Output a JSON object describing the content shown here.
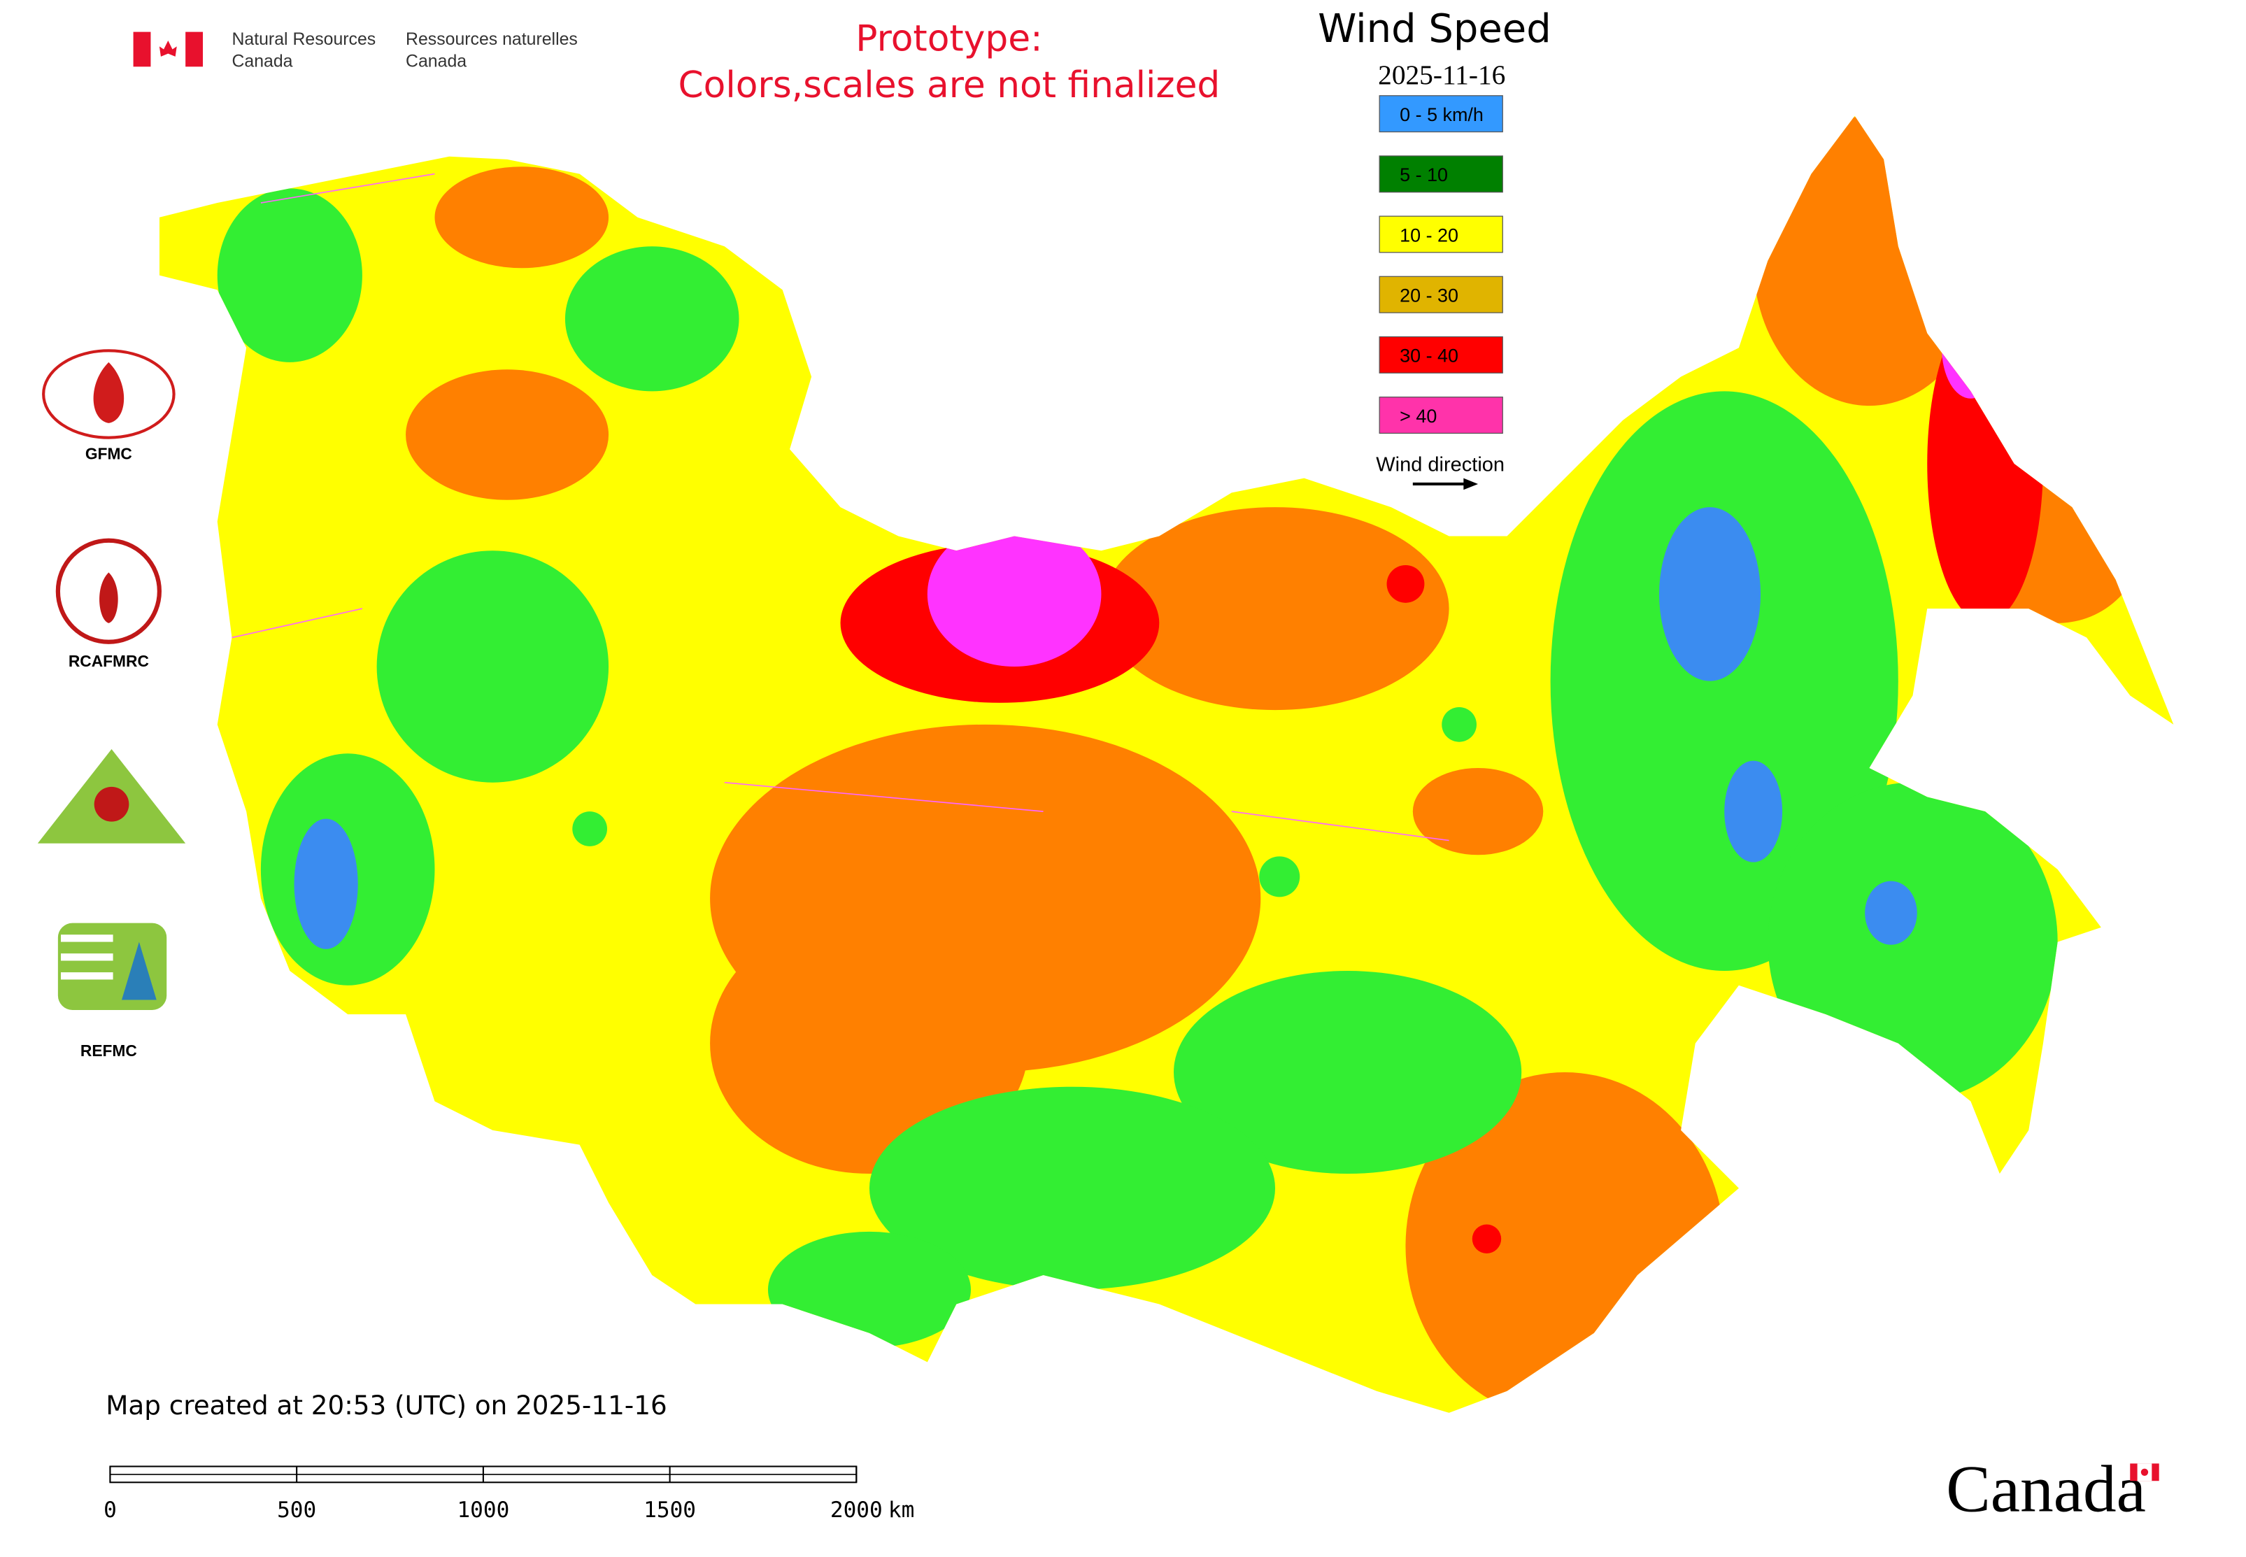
{
  "header": {
    "dept_en": [
      "Natural Resources",
      "Canada"
    ],
    "dept_fr": [
      "Ressources naturelles",
      "Canada"
    ],
    "notice": [
      "Prototype:",
      "Colors,scales are not finalized"
    ]
  },
  "legend": {
    "title": "Wind Speed",
    "date": "2025-11-16",
    "classes": [
      {
        "label": "0 - 5 km/h",
        "color": "#3399ff"
      },
      {
        "label": "5 - 10",
        "color": "#008000"
      },
      {
        "label": "10 - 20",
        "color": "#ffff00"
      },
      {
        "label": "20 - 30",
        "color": "#e0b400"
      },
      {
        "label": "30 - 40",
        "color": "#ff0000"
      },
      {
        "label": "> 40",
        "color": "#ff33aa"
      }
    ],
    "direction_label": "Wind direction"
  },
  "logos": [
    "GFMC",
    "RCAFMRC",
    "REFMC"
  ],
  "footer": {
    "created": "Map created at 20:53 (UTC) on 2025-11-16",
    "scale_ticks": [
      0,
      500,
      1000,
      1500,
      2000
    ],
    "scale_unit": "km",
    "wordmark": "Canada"
  }
}
